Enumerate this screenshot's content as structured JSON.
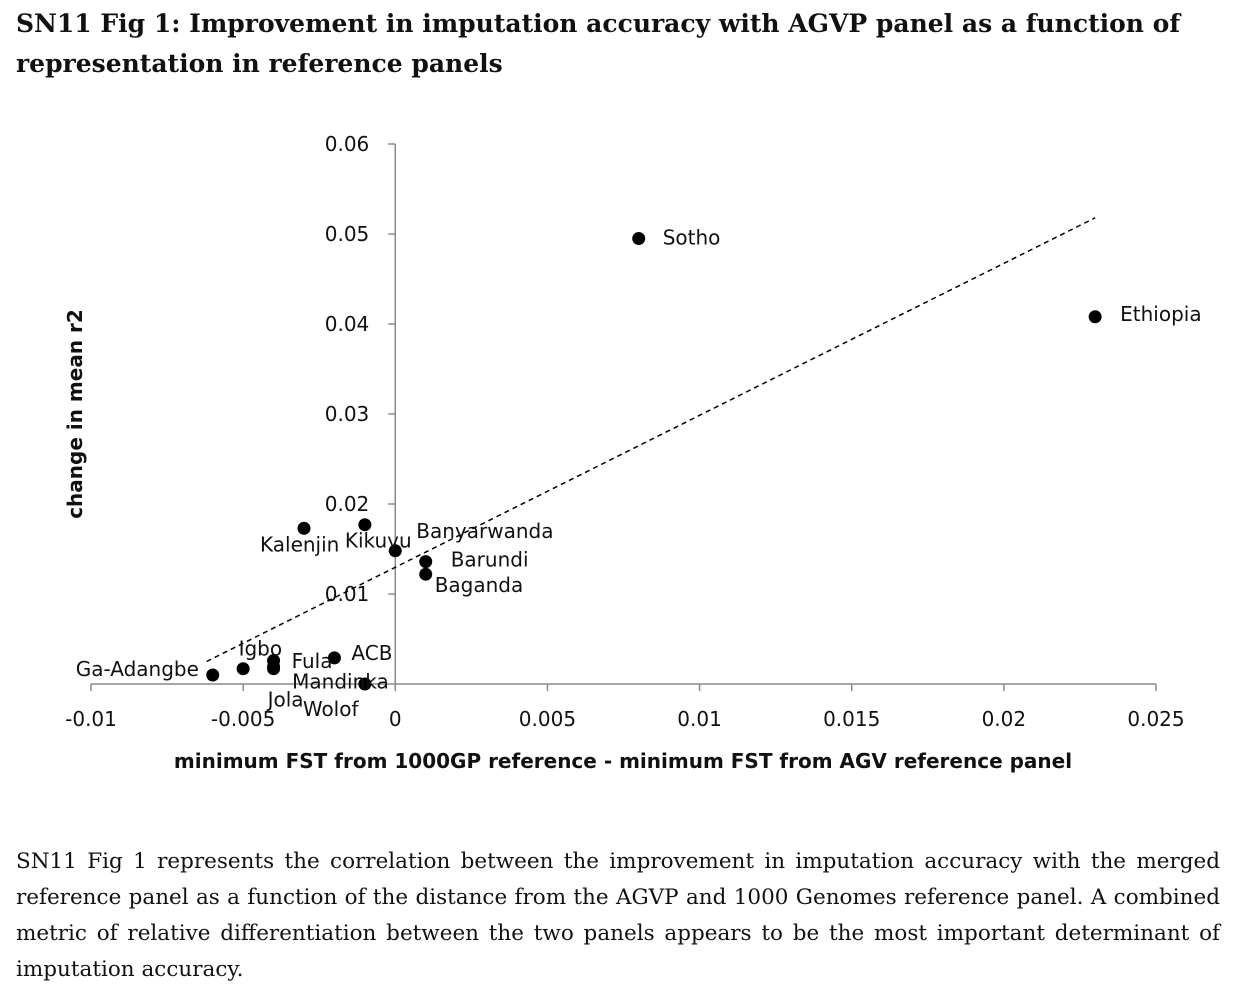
{
  "figure": {
    "title": "SN11 Fig 1: Improvement in imputation accuracy with AGVP panel as a function of representation in reference panels",
    "caption": "SN11 Fig 1 represents the correlation between the improvement in imputation accuracy with the merged reference panel as a function of the distance from the AGVP and 1000 Genomes reference panel.  A combined metric of relative differentiation between the two panels appears to be the most important determinant of imputation accuracy."
  },
  "chart_data": {
    "type": "scatter",
    "xlabel": "minimum FST from 1000GP reference - minimum FST from AGV reference panel",
    "ylabel": "change in mean r2",
    "xlim": [
      -0.01,
      0.025
    ],
    "ylim": [
      0,
      0.06
    ],
    "x_ticks": [
      "-0.01",
      "-0.005",
      "0",
      "0.005",
      "0.01",
      "0.015",
      "0.02",
      "0.025"
    ],
    "x_tick_values": [
      -0.01,
      -0.005,
      0,
      0.005,
      0.01,
      0.015,
      0.02,
      0.025
    ],
    "y_ticks": [
      "0.01",
      "0.02",
      "0.03",
      "0.04",
      "0.05",
      "0.06"
    ],
    "y_tick_values": [
      0.01,
      0.02,
      0.03,
      0.04,
      0.05,
      0.06
    ],
    "grid": false,
    "marker_color": "#000000",
    "points": [
      {
        "label": "Sotho",
        "x": 0.008,
        "y": 0.0495
      },
      {
        "label": "Ethiopia",
        "x": 0.023,
        "y": 0.0408
      },
      {
        "label": "Kalenjin",
        "x": -0.003,
        "y": 0.0173
      },
      {
        "label": "Kikuyu",
        "x": -0.001,
        "y": 0.0177
      },
      {
        "label": "Banyarwanda",
        "x": 0.0,
        "y": 0.0148
      },
      {
        "label": "Barundi",
        "x": 0.001,
        "y": 0.0136
      },
      {
        "label": "Baganda",
        "x": 0.001,
        "y": 0.0122
      },
      {
        "label": "Igbo",
        "x": -0.004,
        "y": 0.0026
      },
      {
        "label": "Fula",
        "x": -0.004,
        "y": 0.0019
      },
      {
        "label": "ACB",
        "x": -0.002,
        "y": 0.0029
      },
      {
        "label": "Mandinka",
        "x": -0.005,
        "y": 0.0017
      },
      {
        "label": "Jola",
        "x": -0.004,
        "y": 0.0017
      },
      {
        "label": "Wolof",
        "x": -0.001,
        "y": 0.0
      },
      {
        "label": "Ga-Adangbe",
        "x": -0.006,
        "y": 0.001
      }
    ],
    "trendline": {
      "style": "dashed",
      "x": [
        -0.0062,
        0.023
      ],
      "y": [
        0.0025,
        0.0518
      ]
    }
  }
}
